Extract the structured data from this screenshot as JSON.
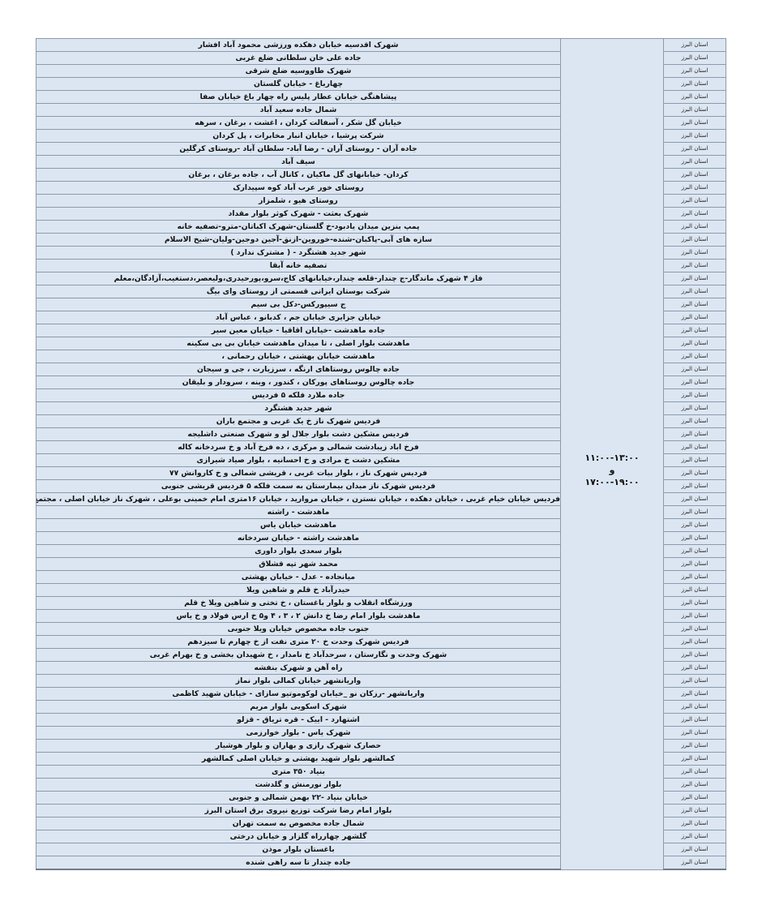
{
  "colors": {
    "cell_background": "#dce6f2",
    "border": "#8c9aab"
  },
  "time_window": {
    "first": "۱۱:۰۰-۱۳:۰۰",
    "conjunction": "و",
    "second": "۱۷:۰۰-۱۹:۰۰"
  },
  "rows": [
    {
      "address": "شهرک اقدسیه خیابان دهکده ورزشی محمود آباد افشار",
      "province": "استان البرز"
    },
    {
      "address": "جاده علی خان سلطانی ضلع غربی",
      "province": "استان البرز"
    },
    {
      "address": "شهرک طاووسیه ضلع شرقی",
      "province": "استان البرز"
    },
    {
      "address": "چهارباغ - خیابان گلستان",
      "province": "استان البرز"
    },
    {
      "address": "پیشاهنگی خیابان عطار پلیس راه چهار باغ خیابان صفا",
      "province": "استان البرز"
    },
    {
      "address": "شمال جاده سعید آباد",
      "province": "استان البرز"
    },
    {
      "address": "خیابان گل شکر ، آسفالت کردان ، اغشت ، برغان ، سرهه",
      "province": "استان البرز"
    },
    {
      "address": "شرکت پرشیا ، خیابان انبار مخابرات ، پل کردان",
      "province": "استان البرز"
    },
    {
      "address": "جاده آران - روستای آران - رضا آباد- سلطان آباد -روستای کرگلین",
      "province": "استان البرز"
    },
    {
      "address": "سیف آباد",
      "province": "استان البرز"
    },
    {
      "address": "کردان- خیابانهای گل ماکیان ، کانال آب ، جاده برغان ، برغان",
      "province": "استان البرز"
    },
    {
      "address": "روستای خور  عرب آباد کوه  سپیدارک",
      "province": "استان البرز"
    },
    {
      "address": "روستای هیو ، شلمزار",
      "province": "استان البرز"
    },
    {
      "address": "شهرک بعثت  - شهرک کوثر بلوار مقداد",
      "province": "استان البرز"
    },
    {
      "address": "پمپ بنزین میدان یادبود-خ گلستان-شهرک اکباتان-مترو-تصفیه خانه",
      "province": "استان البرز"
    },
    {
      "address": "سازه های آبی-پاکبان-شنده-خوروین-ازنق-آجین دوجین-ولیان-شیخ الاسلام",
      "province": "استان البرز"
    },
    {
      "address": "شهر جدید هشتگرد - ( مشترک ندارد )",
      "province": "استان البرز"
    },
    {
      "address": "تصفیه خانه آبقا",
      "province": "استان البرز"
    },
    {
      "address": "فاز ۴ شهرک ماندگار-ج چندار-قلعه چندار،خیابانهای کاج،سرو،پورحیدری،ولیعصر،دستغیب،آزادگان،معلم",
      "province": "استان البرز"
    },
    {
      "address": "شرکت بوستان ایرانی قسمتی از روستای وای بیگ",
      "province": "استان البرز"
    },
    {
      "address": "ج سیپورکس-دکل بی سیم",
      "province": "استان البرز"
    },
    {
      "address": "خیابان جزایری خیابان جم ، کدبانو ، عباس آباد",
      "province": "استان البرز"
    },
    {
      "address": "جاده ماهدشت -خیابان اقاقیا - خیابان معین سیر",
      "province": "استان البرز"
    },
    {
      "address": "ماهدشت بلوار اصلی ، تا میدان ماهدشت خیابان بی بی سکینه",
      "province": "استان البرز"
    },
    {
      "address": "ماهدشت خیابان بهشتی ، خیابان رحمانی ،",
      "province": "استان البرز"
    },
    {
      "address": "جاده چالوس روستاهای ارنگه ، سرزیارت ، جی و سیجان",
      "province": "استان البرز"
    },
    {
      "address": "جاده چالوس روستاهای پورکان ، کندور ، وینه ، سرودار و بلیقان",
      "province": "استان البرز"
    },
    {
      "address": "جاده ملارد فلکه ۵ فردیس",
      "province": "استان البرز"
    },
    {
      "address": "شهر جدید هشتگرد",
      "province": "استان البرز"
    },
    {
      "address": "فردیس شهرک ناز خ یک غربی و مجتمع باران",
      "province": "استان البرز"
    },
    {
      "address": "فردیس مشکین دشت بلوار جلال لو و شهرک صنعتی داشلیجه",
      "province": "استان البرز"
    },
    {
      "address": "فرخ اباد زیبادشت شمالی و مرکزی ، ده فرخ آباد و خ  سردخانه کاله",
      "province": "استان البرز"
    },
    {
      "address": "مشکین دشت خ مرادی و خ احسانیه ، بلوار صیاد شیرازی",
      "province": "استان البرز"
    },
    {
      "address": "فردیس شهرک ناز ، بلوار بیات غربی ، قریشی شمالی و خ کاروانش ۷۷",
      "province": "استان البرز"
    },
    {
      "address": "فردیس شهرک ناز  میدان بیمارستان به سمت فلکه ۵ فردیس   قریشی جنوبی",
      "province": "استان البرز"
    },
    {
      "address": "فردیس خیابان خیام غربی ،  خیابان دهکده ، خیابان نسترن ، خیابان مروارید ، خیابان ۱۶متری امام خمینی بوعلی ، شهرک ناز خیابان اصلی ، مجتمع میلاد ، شهرک دریانیه",
      "province": "استان البرز"
    },
    {
      "address": "ماهدشت  - راشته",
      "province": "استان البرز"
    },
    {
      "address": "ماهدشت خیابان یاس",
      "province": "استان البرز"
    },
    {
      "address": "ماهدشت راشته - خیابان سردخانه",
      "province": "استان البرز"
    },
    {
      "address": "بلوار سعدی بلوار داوری",
      "province": "استان البرز"
    },
    {
      "address": "محمد شهر تپه قشلاق",
      "province": "استان البرز"
    },
    {
      "address": "میانجاده  - عدل  -  خیابان بهشتی",
      "province": "استان البرز"
    },
    {
      "address": "حیدرآباد خ قلم و شاهین ویلا",
      "province": "استان البرز"
    },
    {
      "address": "ورزشگاه انقلاب و بلوار باغستان  ، خ تختی و شاهین ویلا خ قلم",
      "province": "استان البرز"
    },
    {
      "address": "ماهدشت بلوار امام رضا  خ دانش ۲ ، ۳ ، ۴ و۵ خ ارس فولاد و خ یاس",
      "province": "استان البرز"
    },
    {
      "address": "جنوب جاده مخصوص خیابان ویلا جنوبی",
      "province": "استان البرز"
    },
    {
      "address": "فردیس شهرک وحدت خ ۲۰ متری نفت از خ  چهارم تا سیزدهم",
      "province": "استان البرز"
    },
    {
      "address": "شهرک وحدت و نگارستان  ، سرحدآباد خ نامدار ، خ شهیدان بخشی و خ بهرام غربی",
      "province": "استان البرز"
    },
    {
      "address": "راه آهن و شهرک بنفشه",
      "province": "استان البرز"
    },
    {
      "address": "واریانشهر خیابان کمالی بلوار نماز",
      "province": "استان البرز"
    },
    {
      "address": "واریانشهر -رزکان نو _خیابان لوکوموتیو سازای  - خیابان شهید کاظمی",
      "province": "استان البرز"
    },
    {
      "address": "شهرک اسکویی بلوار مریم",
      "province": "استان البرز"
    },
    {
      "address": "اشتهارد - اییک - قره تریاق - قزلو",
      "province": "استان البرز"
    },
    {
      "address": "شهرک یاس - بلوار خوارزمی",
      "province": "استان البرز"
    },
    {
      "address": "حصارک شهرک رازی و بهاران و بلوار هوشیار",
      "province": "استان البرز"
    },
    {
      "address": "کمالشهر بلوار شهید بهشتی و خیابان اصلی کمالشهر",
      "province": "استان البرز"
    },
    {
      "address": "بنیاد ۳۵۰ متری",
      "province": "استان البرز"
    },
    {
      "address": "بلوار نورمنش و گلدشت",
      "province": "استان البرز"
    },
    {
      "address": "خیابان بنیاد -۲۲ بهمن شمالی و جنوبی",
      "province": "استان البرز"
    },
    {
      "address": "بلوار امام رضا  شرکت توزیع نیروی برق استان البرز",
      "province": "استان البرز"
    },
    {
      "address": "شمال جاده مخصوص به سمت تهران",
      "province": "استان البرز"
    },
    {
      "address": "گلشهر چهارراه گلزار و خیابان درختی",
      "province": "استان البرز"
    },
    {
      "address": "باغستان بلوار موذن",
      "province": "استان البرز"
    },
    {
      "address": "جاده چندار تا سه راهی شنده",
      "province": "استان البرز"
    }
  ]
}
